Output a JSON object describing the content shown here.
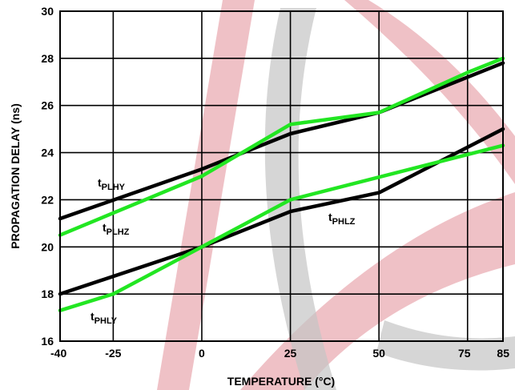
{
  "chart_data": {
    "type": "line",
    "title": "",
    "xlabel": "TEMPERATURE (°C)",
    "ylabel": "PROPAGATION DELAY (ns)",
    "xlim": [
      -40,
      85
    ],
    "ylim": [
      16,
      30
    ],
    "x_ticks": [
      -40,
      -25,
      0,
      25,
      50,
      75,
      85
    ],
    "y_ticks": [
      16,
      18,
      20,
      22,
      24,
      26,
      28,
      30
    ],
    "grid": true,
    "legend": "none",
    "series": [
      {
        "name": "tPLHY",
        "label_main": "t",
        "label_sub": "PLHY",
        "color": "#000000",
        "x": [
          -40,
          0,
          25,
          50,
          85
        ],
        "y": [
          21.2,
          23.3,
          24.8,
          25.7,
          27.8
        ]
      },
      {
        "name": "tPLHZ",
        "label_main": "t",
        "label_sub": "PLHZ",
        "color": "#22e622",
        "x": [
          -40,
          0,
          25,
          50,
          75,
          85
        ],
        "y": [
          20.5,
          23.0,
          25.2,
          25.7,
          27.4,
          28.0
        ]
      },
      {
        "name": "tPHLZ",
        "label_main": "t",
        "label_sub": "PHLZ",
        "color": "#000000",
        "x": [
          -40,
          0,
          25,
          50,
          85
        ],
        "y": [
          18.0,
          20.0,
          21.5,
          22.3,
          25.0
        ]
      },
      {
        "name": "tPHLY",
        "label_main": "t",
        "label_sub": "PHLY",
        "color": "#22e622",
        "x": [
          -40,
          -25,
          0,
          25,
          85
        ],
        "y": [
          17.3,
          18.0,
          20.0,
          22.0,
          24.3
        ]
      }
    ]
  },
  "watermark_colors": {
    "red": "#e8a6ae",
    "gray": "#c4c4c4"
  }
}
